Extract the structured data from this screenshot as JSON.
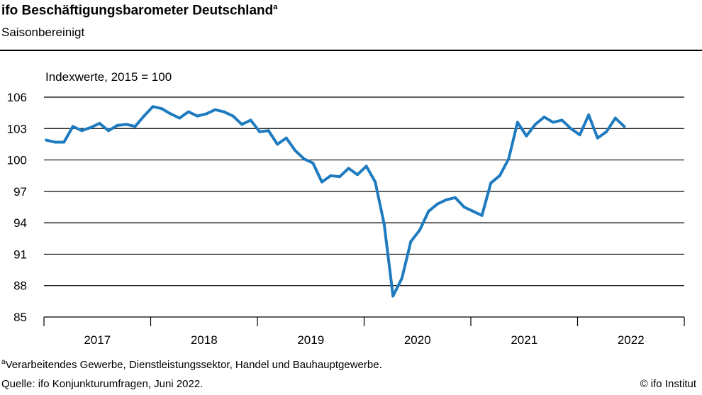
{
  "title": "ifo Beschäftigungsbarometer Deutschland",
  "title_footnote_mark": "a",
  "subtitle": "Saisonbereinigt",
  "footnote_mark": "a",
  "footnote": "Verarbeitendes  Gewerbe,  Dienstleistungssektor,  Handel und Bauhauptgewerbe.",
  "source": "Quelle:  ifo Konjunkturumfragen,  Juni 2022.",
  "copyright": "© ifo Institut",
  "chart_data": {
    "type": "line",
    "ylabel": "Indexwerte, 2015 = 100",
    "ylim": [
      85,
      106
    ],
    "yticks": [
      85,
      88,
      91,
      94,
      97,
      100,
      103,
      106
    ],
    "grid": true,
    "xticks": [
      "2017",
      "2018",
      "2019",
      "2020",
      "2021",
      "2022"
    ],
    "line_color": "#1f7bbf",
    "x": [
      "2017-01",
      "2017-02",
      "2017-03",
      "2017-04",
      "2017-05",
      "2017-06",
      "2017-07",
      "2017-08",
      "2017-09",
      "2017-10",
      "2017-11",
      "2017-12",
      "2018-01",
      "2018-02",
      "2018-03",
      "2018-04",
      "2018-05",
      "2018-06",
      "2018-07",
      "2018-08",
      "2018-09",
      "2018-10",
      "2018-11",
      "2018-12",
      "2019-01",
      "2019-02",
      "2019-03",
      "2019-04",
      "2019-05",
      "2019-06",
      "2019-07",
      "2019-08",
      "2019-09",
      "2019-10",
      "2019-11",
      "2019-12",
      "2020-01",
      "2020-02",
      "2020-03",
      "2020-04",
      "2020-05",
      "2020-06",
      "2020-07",
      "2020-08",
      "2020-09",
      "2020-10",
      "2020-11",
      "2020-12",
      "2021-01",
      "2021-02",
      "2021-03",
      "2021-04",
      "2021-05",
      "2021-06",
      "2021-07",
      "2021-08",
      "2021-09",
      "2021-10",
      "2021-11",
      "2021-12",
      "2022-01",
      "2022-02",
      "2022-03",
      "2022-04",
      "2022-05",
      "2022-06"
    ],
    "values": [
      101.9,
      101.7,
      101.7,
      103.2,
      102.8,
      103.1,
      103.5,
      102.8,
      103.3,
      103.4,
      103.2,
      104.2,
      105.1,
      104.9,
      104.4,
      104.0,
      104.6,
      104.2,
      104.4,
      104.8,
      104.6,
      104.2,
      103.4,
      103.8,
      102.7,
      102.8,
      101.5,
      102.1,
      100.9,
      100.1,
      99.7,
      97.9,
      98.5,
      98.4,
      99.2,
      98.6,
      99.4,
      97.9,
      93.9,
      87.0,
      88.7,
      92.2,
      93.3,
      95.1,
      95.8,
      96.2,
      96.4,
      95.5,
      95.1,
      94.7,
      97.8,
      98.5,
      100.1,
      103.6,
      102.3,
      103.4,
      104.1,
      103.6,
      103.8,
      103.0,
      102.4,
      104.3,
      102.1,
      102.7,
      104.0,
      103.2
    ]
  }
}
